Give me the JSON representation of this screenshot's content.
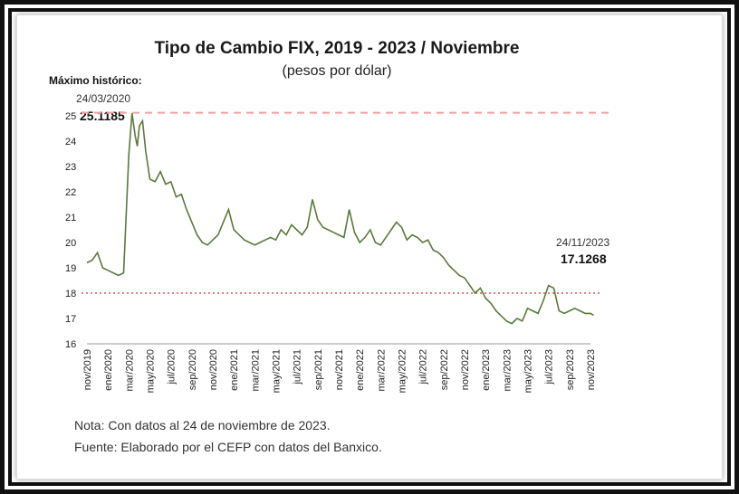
{
  "chart_data": {
    "type": "line",
    "title": "Tipo de Cambio FIX, 2019 - 2023 / Noviembre",
    "subtitle": "(pesos por dólar)",
    "xlabel": "",
    "ylabel": "",
    "ylim": [
      16,
      25
    ],
    "yticks": [
      16,
      17,
      18,
      19,
      20,
      21,
      22,
      23,
      24,
      25
    ],
    "x_tick_labels": [
      "nov/2019",
      "ene/2020",
      "mar/2020",
      "may/2020",
      "jul/2020",
      "sep/2020",
      "nov/2020",
      "ene/2021",
      "mar/2021",
      "may/2021",
      "jul/2021",
      "sep/2021",
      "nov/2021",
      "ene/2022",
      "mar/2022",
      "may/2022",
      "jul/2022",
      "sep/2022",
      "nov/2022",
      "ene/2023",
      "mar/2023",
      "may/2023",
      "jul/2023",
      "sep/2023",
      "nov/2023"
    ],
    "series": [
      {
        "name": "Tipo de Cambio FIX",
        "color": "#5a7a3a",
        "x": [
          0,
          0.5,
          1,
          1.5,
          2,
          2.5,
          3,
          3.5,
          4,
          4.3,
          4.6,
          4.8,
          5,
          5.3,
          5.6,
          6,
          6.5,
          7,
          7.5,
          8,
          8.5,
          9,
          9.5,
          10,
          10.5,
          11,
          11.5,
          12,
          12.5,
          13,
          13.5,
          14,
          14.5,
          15,
          15.5,
          16,
          16.5,
          17,
          17.5,
          18,
          18.5,
          19,
          19.5,
          20,
          20.5,
          21,
          21.5,
          22,
          22.5,
          23,
          23.5,
          24,
          24.5,
          25,
          25.5,
          26,
          26.5,
          27,
          27.5,
          28,
          28.5,
          29,
          29.5,
          30,
          30.5,
          31,
          31.5,
          32,
          32.5,
          33,
          33.5,
          34,
          34.5,
          35,
          35.5,
          36,
          36.5,
          37,
          37.5,
          38,
          38.5,
          39,
          39.5,
          40,
          40.5,
          41,
          41.5,
          42,
          42.5,
          43,
          43.5,
          44,
          44.5,
          45,
          45.5,
          46,
          46.5,
          47,
          47.5,
          48,
          48.3
        ],
        "values": [
          19.2,
          19.3,
          19.6,
          19.0,
          18.9,
          18.8,
          18.7,
          18.8,
          23.5,
          25.1,
          24.2,
          23.8,
          24.6,
          24.8,
          23.6,
          22.5,
          22.4,
          22.8,
          22.3,
          22.4,
          21.8,
          21.9,
          21.3,
          20.8,
          20.3,
          20.0,
          19.9,
          20.1,
          20.3,
          20.8,
          21.3,
          20.5,
          20.3,
          20.1,
          20.0,
          19.9,
          20.0,
          20.1,
          20.2,
          20.1,
          20.5,
          20.3,
          20.7,
          20.5,
          20.3,
          20.6,
          21.7,
          20.9,
          20.6,
          20.5,
          20.4,
          20.3,
          20.2,
          21.3,
          20.4,
          20.0,
          20.2,
          20.5,
          20.0,
          19.9,
          20.2,
          20.5,
          20.8,
          20.6,
          20.1,
          20.3,
          20.2,
          20.0,
          20.1,
          19.7,
          19.6,
          19.4,
          19.1,
          18.9,
          18.7,
          18.6,
          18.3,
          18.0,
          18.2,
          17.8,
          17.6,
          17.3,
          17.1,
          16.9,
          16.8,
          17.0,
          16.9,
          17.4,
          17.3,
          17.2,
          17.7,
          18.3,
          18.2,
          17.3,
          17.2,
          17.3,
          17.4,
          17.3,
          17.2,
          17.2,
          17.13
        ]
      }
    ],
    "reference_lines": [
      {
        "name": "maximo-historico",
        "y": 25.1185,
        "color": "#f0a0a0",
        "style": "dashed"
      },
      {
        "name": "nivel-18",
        "y": 18,
        "color": "#d03030",
        "style": "dotted"
      }
    ],
    "annotations": {
      "max_label": "Máximo histórico:",
      "max_date": "24/03/2020",
      "max_value": "25.1185",
      "last_date": "24/11/2023",
      "last_value": "17.1268"
    }
  },
  "notes": {
    "line1": "Nota: Con datos al 24 de noviembre de 2023.",
    "line2": "Fuente: Elaborado por el CEFP con datos del Banxico."
  }
}
